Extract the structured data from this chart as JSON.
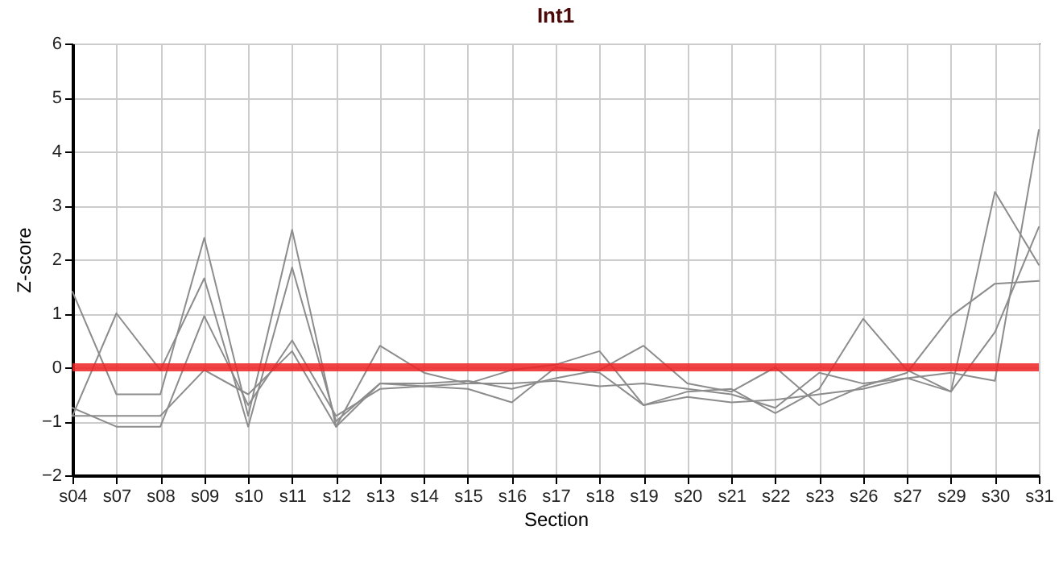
{
  "chart_data": {
    "type": "line",
    "title": "Int1",
    "xlabel": "Section",
    "ylabel": "Z-score",
    "categories": [
      "s04",
      "s07",
      "s08",
      "s09",
      "s10",
      "s11",
      "s12",
      "s13",
      "s14",
      "s15",
      "s16",
      "s17",
      "s18",
      "s19",
      "s20",
      "s21",
      "s22",
      "s23",
      "s26",
      "s27",
      "s29",
      "s30",
      "s31"
    ],
    "series": [
      {
        "color": "#8c8c8c",
        "values": [
          1.4,
          -0.5,
          -0.5,
          2.4,
          -0.9,
          2.55,
          -1.1,
          0.4,
          -0.1,
          -0.3,
          -0.05,
          0.05,
          0.3,
          -0.7,
          -0.45,
          -0.4,
          -0.85,
          -0.4,
          0.9,
          -0.05,
          -0.45,
          3.25,
          1.9
        ]
      },
      {
        "color": "#8c8c8c",
        "values": [
          -0.9,
          1.0,
          -0.05,
          1.65,
          -1.1,
          1.85,
          -1.0,
          -0.3,
          -0.3,
          -0.25,
          -0.4,
          -0.2,
          -0.05,
          0.4,
          -0.3,
          -0.45,
          0.0,
          -0.7,
          -0.35,
          -0.1,
          0.95,
          1.55,
          1.6
        ]
      },
      {
        "color": "#8c8c8c",
        "values": [
          -0.75,
          -1.1,
          -1.1,
          0.95,
          -0.7,
          0.5,
          -0.9,
          -0.4,
          -0.35,
          -0.4,
          -0.65,
          0.0,
          -0.1,
          -0.7,
          -0.55,
          -0.65,
          -0.6,
          -0.5,
          -0.4,
          -0.2,
          -0.1,
          -0.25,
          4.4
        ]
      },
      {
        "color": "#8c8c8c",
        "values": [
          -0.9,
          -0.9,
          -0.9,
          -0.05,
          -0.5,
          0.3,
          -1.1,
          -0.3,
          -0.35,
          -0.3,
          -0.3,
          -0.25,
          -0.35,
          -0.3,
          -0.4,
          -0.5,
          -0.75,
          -0.1,
          -0.3,
          -0.2,
          -0.45,
          0.65,
          2.6
        ]
      }
    ],
    "ylim": [
      -2,
      6
    ],
    "yticks": [
      -2,
      -1,
      0,
      1,
      2,
      3,
      4,
      5,
      6
    ],
    "grid": true,
    "legend": false,
    "marker": "none",
    "line_style": "solid",
    "ref_lines": [
      {
        "axis": "y",
        "value": 0,
        "color": "#ee2222"
      }
    ]
  }
}
